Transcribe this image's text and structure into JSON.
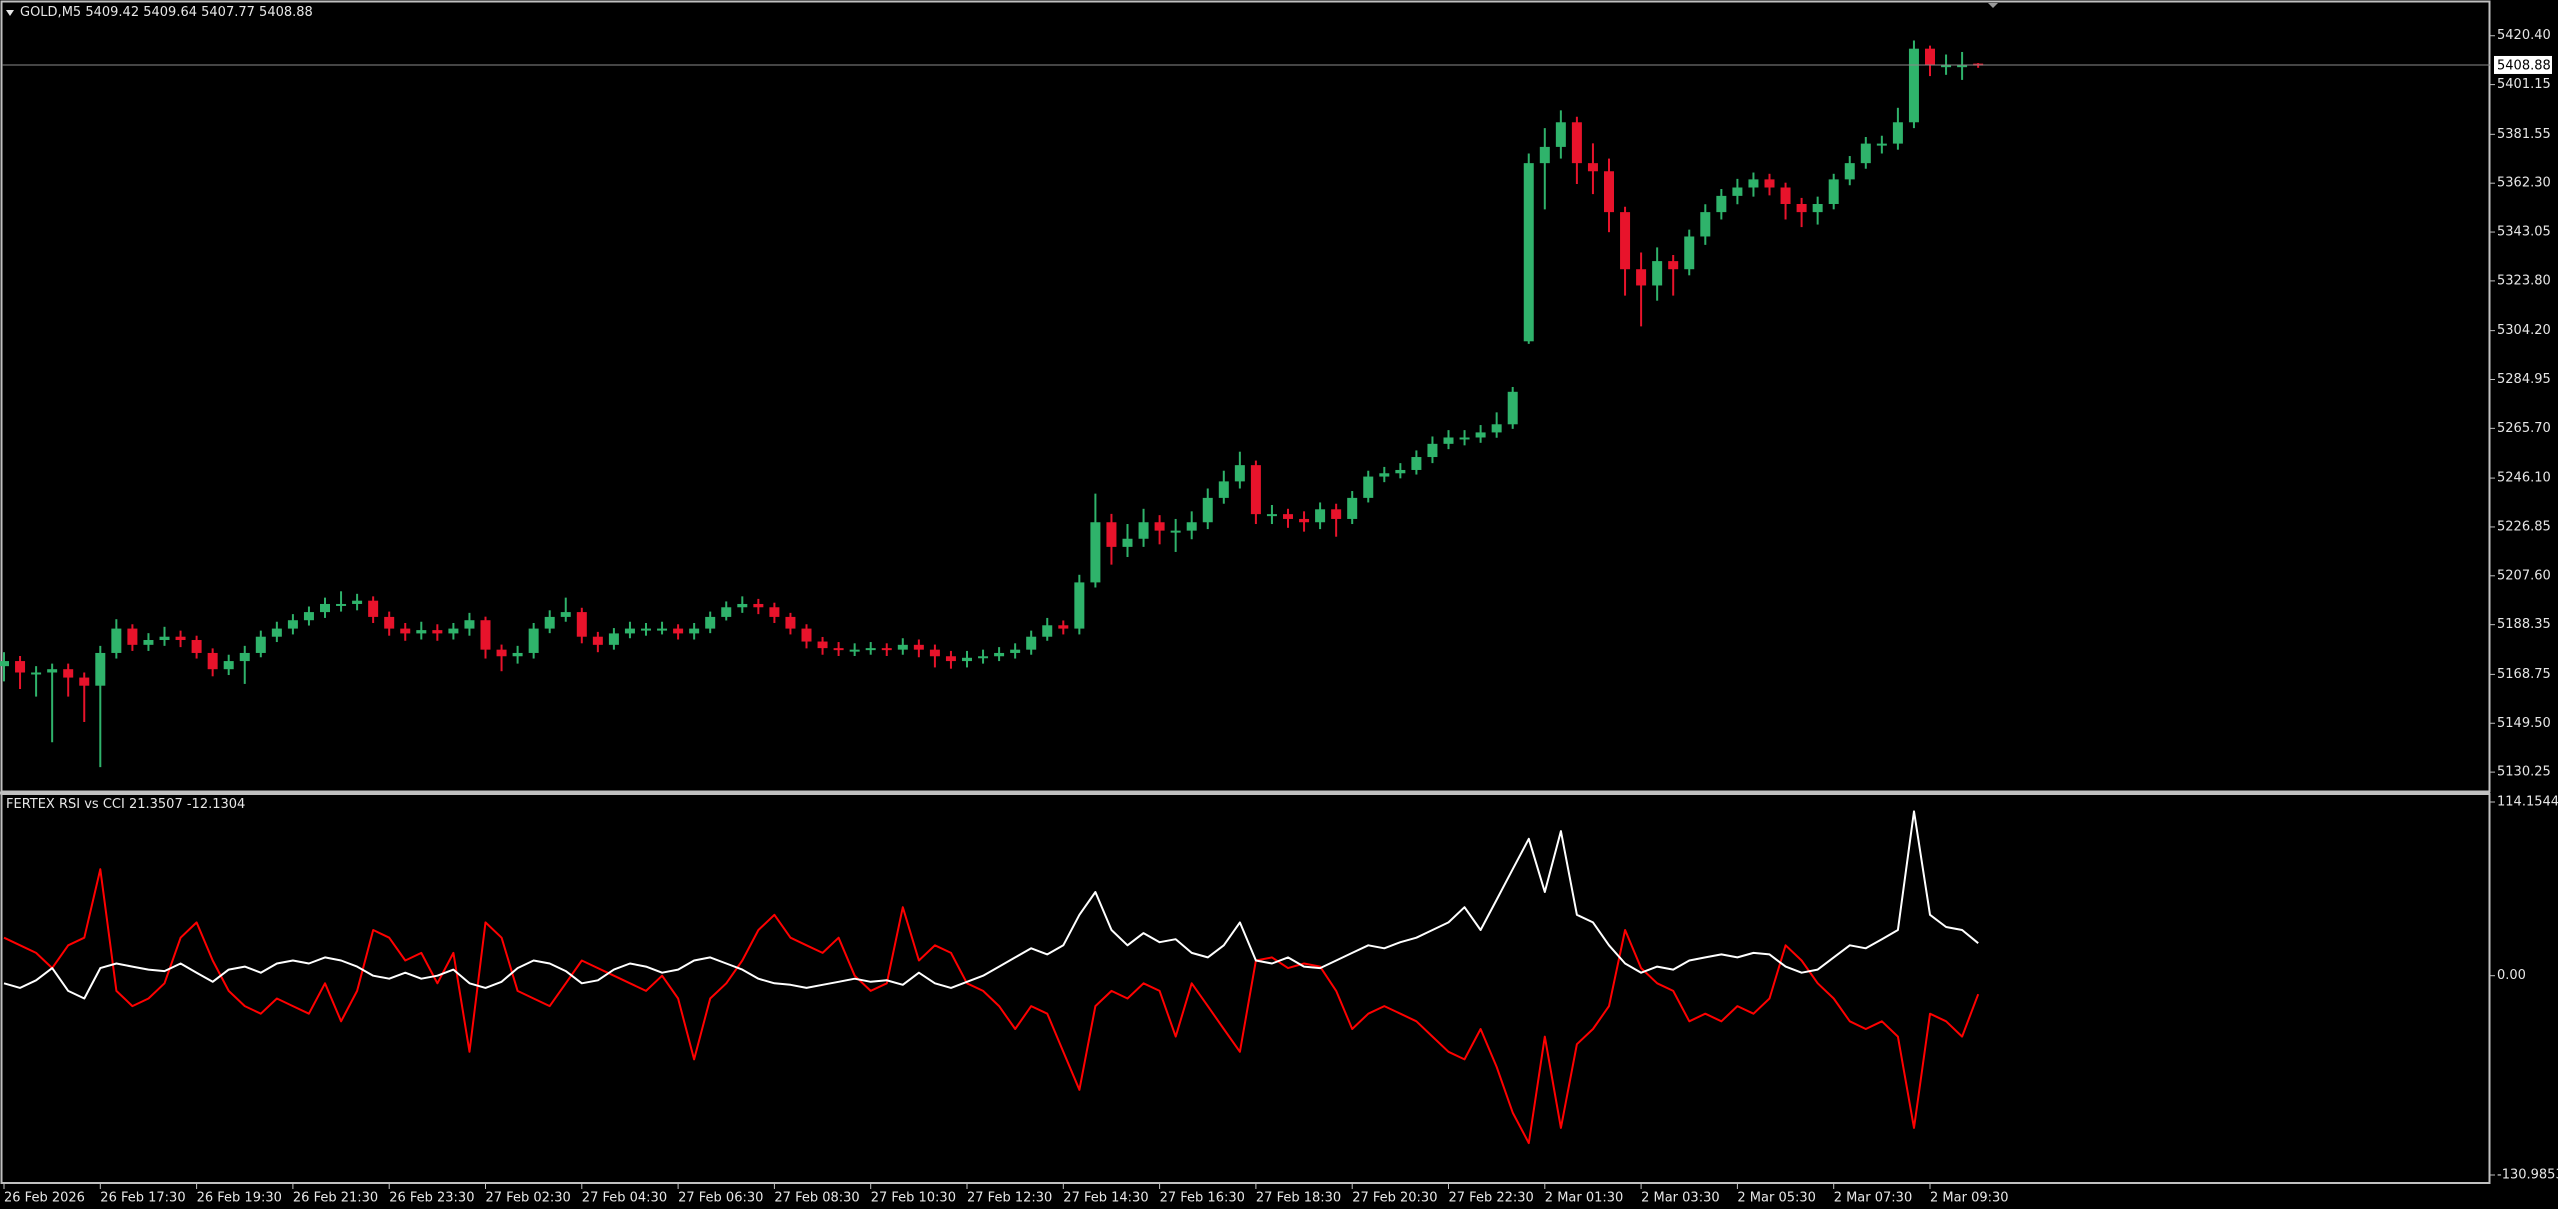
{
  "chart_data": [
    {
      "type": "candlestick",
      "symbol": "GOLD,M5",
      "up_color": "#2fb36b",
      "down_color": "#e8132b",
      "categories": [
        "26 Feb 2026",
        null,
        null,
        null,
        null,
        null,
        "26 Feb 17:30",
        null,
        null,
        null,
        null,
        null,
        "26 Feb 19:30",
        null,
        null,
        null,
        null,
        null,
        "26 Feb 21:30",
        null,
        null,
        null,
        null,
        null,
        "26 Feb 23:30",
        null,
        null,
        null,
        null,
        null,
        "27 Feb 02:30",
        null,
        null,
        null,
        null,
        null,
        "27 Feb 04:30",
        null,
        null,
        null,
        null,
        null,
        "27 Feb 06:30",
        null,
        null,
        null,
        null,
        null,
        "27 Feb 08:30",
        null,
        null,
        null,
        null,
        null,
        "27 Feb 10:30",
        null,
        null,
        null,
        null,
        null,
        "27 Feb 12:30",
        null,
        null,
        null,
        null,
        null,
        "27 Feb 14:30",
        null,
        null,
        null,
        null,
        null,
        "27 Feb 16:30",
        null,
        null,
        null,
        null,
        null,
        "27 Feb 18:30",
        null,
        null,
        null,
        null,
        null,
        "27 Feb 20:30",
        null,
        null,
        null,
        null,
        null,
        "27 Feb 22:30",
        null,
        null,
        null,
        null,
        null,
        "2 Mar 01:30",
        null,
        null,
        null,
        null,
        null,
        "2 Mar 03:30",
        null,
        null,
        null,
        null,
        null,
        "2 Mar 05:30",
        null,
        null,
        null,
        null,
        null,
        "2 Mar 07:30",
        null,
        null,
        null,
        null,
        null,
        "2 Mar 09:30",
        null,
        null,
        null
      ],
      "open": [
        5172.0,
        5174.0,
        5169.5,
        5169.5,
        5170.8,
        5167.5,
        5164.3,
        5177.2,
        5186.8,
        5180.4,
        5182.3,
        5183.6,
        5182.3,
        5177.2,
        5170.8,
        5174.0,
        5177.2,
        5183.6,
        5186.8,
        5190.1,
        5193.3,
        5196.5,
        5196.5,
        5197.8,
        5191.4,
        5186.8,
        5184.9,
        5186.2,
        5184.9,
        5186.8,
        5190.1,
        5178.5,
        5175.9,
        5177.2,
        5186.8,
        5191.4,
        5193.3,
        5183.6,
        5180.4,
        5184.9,
        5186.8,
        5186.8,
        5186.8,
        5184.9,
        5186.8,
        5191.4,
        5195.2,
        5196.5,
        5195.2,
        5191.4,
        5186.8,
        5181.7,
        5179.1,
        5178.5,
        5178.5,
        5179.1,
        5178.5,
        5180.4,
        5178.5,
        5175.9,
        5174.0,
        5175.3,
        5175.9,
        5177.2,
        5178.5,
        5183.6,
        5188.1,
        5186.8,
        5205.0,
        5228.7,
        5219.0,
        5222.2,
        5228.7,
        5225.4,
        5225.4,
        5228.7,
        5238.3,
        5244.8,
        5251.2,
        5231.9,
        5231.9,
        5230.0,
        5228.7,
        5233.8,
        5230.0,
        5238.3,
        5246.7,
        5248.0,
        5249.3,
        5254.4,
        5259.6,
        5262.1,
        5262.1,
        5264.1,
        5267.3,
        5300.0,
        5370.2,
        5376.6,
        5386.3,
        5370.2,
        5367.0,
        5350.9,
        5328.4,
        5322.0,
        5331.6,
        5328.4,
        5341.3,
        5350.9,
        5357.3,
        5360.6,
        5363.8,
        5360.6,
        5354.1,
        5350.9,
        5354.1,
        5363.8,
        5370.2,
        5377.9,
        5377.9,
        5386.3,
        5415.3,
        5408.8,
        5408.8,
        5409.42
      ],
      "high": [
        5177.5,
        5176.0,
        5172.0,
        5173.0,
        5173.0,
        5169.5,
        5180.0,
        5190.5,
        5188.5,
        5185.0,
        5187.5,
        5186.0,
        5184.0,
        5179.0,
        5176.5,
        5180.0,
        5186.0,
        5189.5,
        5192.5,
        5195.5,
        5199.0,
        5201.5,
        5200.5,
        5199.5,
        5193.5,
        5189.0,
        5189.5,
        5188.5,
        5189.0,
        5193.0,
        5191.5,
        5180.5,
        5180.0,
        5189.0,
        5194.0,
        5199.0,
        5195.0,
        5185.5,
        5187.0,
        5189.5,
        5189.0,
        5189.5,
        5188.5,
        5189.0,
        5193.5,
        5197.5,
        5199.5,
        5198.5,
        5197.0,
        5193.0,
        5188.5,
        5183.5,
        5181.5,
        5181.0,
        5181.5,
        5181.0,
        5183.0,
        5182.5,
        5180.5,
        5178.0,
        5178.0,
        5178.5,
        5179.5,
        5181.0,
        5186.0,
        5191.0,
        5190.0,
        5208.0,
        5240.0,
        5232.0,
        5228.0,
        5234.0,
        5231.5,
        5230.0,
        5233.0,
        5242.0,
        5249.0,
        5256.5,
        5253.0,
        5235.5,
        5234.0,
        5233.0,
        5236.5,
        5236.0,
        5241.0,
        5249.0,
        5250.5,
        5252.0,
        5257.0,
        5262.5,
        5265.0,
        5265.0,
        5267.0,
        5272.0,
        5282.0,
        5374.0,
        5384.0,
        5391.0,
        5388.5,
        5378.0,
        5372.0,
        5353.0,
        5335.0,
        5337.0,
        5334.0,
        5344.0,
        5354.0,
        5360.0,
        5364.0,
        5366.5,
        5366.0,
        5362.5,
        5356.5,
        5357.0,
        5366.0,
        5373.0,
        5380.5,
        5381.0,
        5392.0,
        5418.5,
        5416.5,
        5413.0,
        5414.0,
        5409.64
      ],
      "low": [
        5166.0,
        5163.0,
        5160.0,
        5142.0,
        5160.0,
        5150.0,
        5132.2,
        5175.0,
        5178.0,
        5178.0,
        5180.0,
        5179.5,
        5175.0,
        5168.0,
        5168.5,
        5165.0,
        5175.5,
        5181.5,
        5184.5,
        5188.0,
        5191.0,
        5193.5,
        5194.0,
        5189.0,
        5184.0,
        5182.0,
        5182.5,
        5182.0,
        5182.5,
        5184.0,
        5175.0,
        5170.0,
        5173.0,
        5175.0,
        5185.0,
        5189.5,
        5181.0,
        5177.5,
        5178.5,
        5183.0,
        5184.0,
        5184.5,
        5182.5,
        5182.5,
        5185.0,
        5190.0,
        5193.0,
        5192.5,
        5189.0,
        5184.5,
        5179.0,
        5176.5,
        5176.0,
        5176.0,
        5176.5,
        5176.0,
        5176.5,
        5175.5,
        5171.5,
        5171.0,
        5171.5,
        5173.0,
        5174.0,
        5175.0,
        5176.5,
        5182.0,
        5184.5,
        5184.5,
        5203.0,
        5212.0,
        5215.0,
        5219.0,
        5220.0,
        5217.0,
        5222.0,
        5226.0,
        5236.0,
        5242.0,
        5228.0,
        5228.0,
        5226.5,
        5225.0,
        5226.0,
        5223.0,
        5228.0,
        5236.5,
        5244.5,
        5246.0,
        5247.5,
        5252.0,
        5257.5,
        5259.0,
        5260.0,
        5262.0,
        5265.5,
        5299.0,
        5352.0,
        5372.0,
        5362.0,
        5358.0,
        5343.0,
        5318.0,
        5305.9,
        5316.0,
        5318.0,
        5326.0,
        5338.0,
        5348.0,
        5354.0,
        5357.0,
        5357.5,
        5348.0,
        5345.0,
        5346.0,
        5352.0,
        5361.5,
        5368.0,
        5374.0,
        5375.5,
        5384.0,
        5404.5,
        5405.0,
        5403.0,
        5407.77
      ],
      "close": [
        5174.0,
        5169.5,
        5169.5,
        5170.8,
        5167.5,
        5164.3,
        5177.2,
        5186.8,
        5180.4,
        5182.3,
        5183.6,
        5182.3,
        5177.2,
        5170.8,
        5174.0,
        5177.2,
        5183.6,
        5186.8,
        5190.1,
        5193.3,
        5196.5,
        5196.5,
        5197.8,
        5191.4,
        5186.8,
        5184.9,
        5186.2,
        5184.9,
        5186.8,
        5190.1,
        5178.5,
        5175.9,
        5177.2,
        5186.8,
        5191.4,
        5193.3,
        5183.6,
        5180.4,
        5184.9,
        5186.8,
        5186.8,
        5186.8,
        5184.9,
        5186.8,
        5191.4,
        5195.2,
        5196.5,
        5195.2,
        5191.4,
        5186.8,
        5181.7,
        5179.1,
        5178.5,
        5178.5,
        5179.1,
        5178.5,
        5180.4,
        5178.5,
        5175.9,
        5174.0,
        5175.3,
        5175.9,
        5177.2,
        5178.5,
        5183.6,
        5188.1,
        5186.8,
        5205.0,
        5228.7,
        5219.0,
        5222.2,
        5228.7,
        5225.4,
        5225.4,
        5228.7,
        5238.3,
        5244.8,
        5251.2,
        5231.9,
        5231.9,
        5230.0,
        5228.7,
        5233.8,
        5230.0,
        5238.3,
        5246.7,
        5248.0,
        5249.3,
        5254.4,
        5259.6,
        5262.1,
        5262.1,
        5264.1,
        5267.3,
        5280.1,
        5370.2,
        5376.6,
        5386.3,
        5370.2,
        5367.0,
        5350.9,
        5328.4,
        5322.0,
        5331.6,
        5328.4,
        5341.3,
        5350.9,
        5357.3,
        5360.6,
        5363.8,
        5360.6,
        5354.1,
        5350.9,
        5354.1,
        5363.8,
        5370.2,
        5377.9,
        5377.9,
        5386.3,
        5415.3,
        5408.8,
        5408.8,
        5408.8,
        5408.88
      ],
      "ylim": [
        5123.2,
        5433.3
      ],
      "yticks": [
        {
          "value": 5420.4,
          "label": "5420.40"
        },
        5401.15,
        5381.55,
        {
          "value": 5362.3,
          "label": "5362.30"
        },
        5343.05,
        {
          "value": 5323.8,
          "label": "5323.80"
        },
        {
          "value": 5304.2,
          "label": "5304.20"
        },
        5284.95,
        {
          "value": 5265.7,
          "label": "5265.70"
        },
        {
          "value": 5246.1,
          "label": "5246.10"
        },
        5226.85,
        {
          "value": 5207.6,
          "label": "5207.60"
        },
        5188.35,
        5168.75,
        {
          "value": 5149.5,
          "label": "5149.50"
        },
        5130.25
      ]
    },
    {
      "type": "line",
      "title": "FERTEX RSI vs CCI",
      "series": [
        {
          "color": "#ffffff",
          "values": [
            -5,
            -8,
            -3,
            5,
            -10,
            -15,
            5,
            8,
            6,
            4,
            3,
            8,
            2,
            -4,
            4,
            6,
            2,
            8,
            10,
            8,
            12,
            10,
            6,
            0,
            -2,
            2,
            -2,
            0,
            4,
            -5,
            -8,
            -4,
            5,
            10,
            8,
            3,
            -5,
            -3,
            4,
            8,
            6,
            2,
            4,
            10,
            12,
            8,
            4,
            -2,
            -5,
            -6,
            -8,
            -6,
            -4,
            -2,
            -4,
            -3,
            -6,
            2,
            -5,
            -8,
            -4,
            0,
            6,
            12,
            18,
            14,
            20,
            40,
            55,
            30,
            20,
            28,
            22,
            24,
            15,
            12,
            20,
            35,
            10,
            8,
            12,
            6,
            5,
            10,
            15,
            20,
            18,
            22,
            25,
            30,
            35,
            45,
            30,
            50,
            70,
            90,
            55,
            95,
            40,
            35,
            20,
            8,
            2,
            6,
            4,
            10,
            12,
            14,
            12,
            15,
            14,
            6,
            2,
            4,
            12,
            20,
            18,
            24,
            30,
            108,
            40,
            32,
            30,
            21.3507
          ]
        },
        {
          "color": "#ff0000",
          "values": [
            25,
            20,
            15,
            5,
            20,
            25,
            70,
            -10,
            -20,
            -15,
            -5,
            25,
            35,
            10,
            -10,
            -20,
            -25,
            -15,
            -20,
            -25,
            -5,
            -30,
            -10,
            30,
            25,
            10,
            15,
            -5,
            15,
            -50,
            35,
            25,
            -10,
            -15,
            -20,
            -5,
            10,
            5,
            0,
            -5,
            -10,
            0,
            -15,
            -55,
            -15,
            -5,
            10,
            30,
            40,
            25,
            20,
            15,
            25,
            0,
            -10,
            -5,
            45,
            10,
            20,
            15,
            -5,
            -10,
            -20,
            -35,
            -20,
            -25,
            -50,
            -75,
            -20,
            -10,
            -15,
            -5,
            -10,
            -40,
            -5,
            -20,
            -35,
            -50,
            10,
            12,
            5,
            8,
            6,
            -10,
            -35,
            -25,
            -20,
            -25,
            -30,
            -40,
            -50,
            -55,
            -35,
            -60,
            -90,
            -110,
            -40,
            -100,
            -45,
            -35,
            -20,
            30,
            5,
            -5,
            -10,
            -30,
            -25,
            -30,
            -20,
            -25,
            -15,
            20,
            10,
            -5,
            -15,
            -30,
            -35,
            -30,
            -40,
            -100,
            -25,
            -30,
            -40,
            -12.1304
          ]
        }
      ],
      "ylim": [
        -130.9853,
        114.1544
      ],
      "yticks": [
        114.1544,
        {
          "value": 0,
          "label": "0.00"
        },
        -130.9853
      ]
    }
  ]
}
